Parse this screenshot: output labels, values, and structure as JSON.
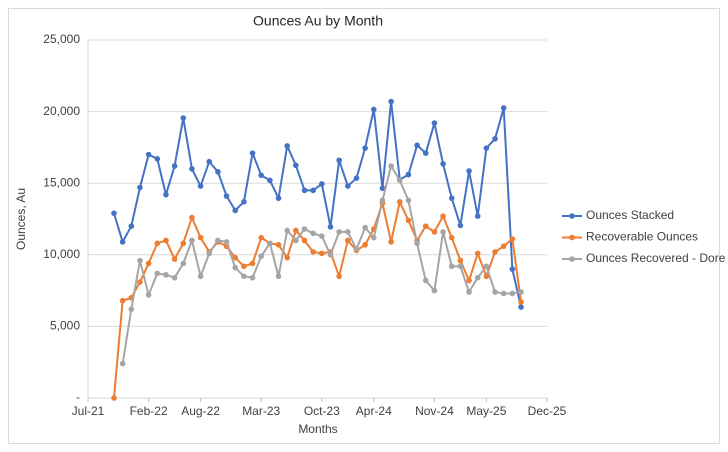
{
  "chart_data": {
    "type": "line",
    "title": "Ounces Au by Month",
    "x_label": "Months",
    "y_label": "Ounces, Au",
    "x": [
      "2021-10",
      "2021-11",
      "2021-12",
      "2022-01",
      "2022-02",
      "2022-03",
      "2022-04",
      "2022-05",
      "2022-06",
      "2022-07",
      "2022-08",
      "2022-09",
      "2022-10",
      "2022-11",
      "2022-12",
      "2023-01",
      "2023-02",
      "2023-03",
      "2023-04",
      "2023-05",
      "2023-06",
      "2023-07",
      "2023-08",
      "2023-09",
      "2023-10",
      "2023-11",
      "2023-12",
      "2024-01",
      "2024-02",
      "2024-03",
      "2024-04",
      "2024-05",
      "2024-06",
      "2024-07",
      "2024-08",
      "2024-09",
      "2024-10",
      "2024-11",
      "2024-12",
      "2025-01",
      "2025-02",
      "2025-03",
      "2025-04",
      "2025-05",
      "2025-06",
      "2025-07",
      "2025-08",
      "2025-09"
    ],
    "series": [
      {
        "name": "Ounces Stacked",
        "color": "#4472c4",
        "values": [
          12900,
          10900,
          12000,
          14700,
          17000,
          16700,
          14200,
          16200,
          19550,
          16000,
          14800,
          16500,
          15800,
          14100,
          13100,
          13700,
          17100,
          15550,
          15200,
          13950,
          17600,
          16250,
          14500,
          14500,
          14950,
          11950,
          16600,
          14800,
          15350,
          17450,
          20150,
          14650,
          20700,
          15250,
          15600,
          17650,
          17100,
          19200,
          16350,
          13950,
          12050,
          15850,
          12700,
          17450,
          18100,
          20250,
          9000,
          6350
        ]
      },
      {
        "name": "Recoverable Ounces",
        "color": "#ed7d31",
        "values": [
          0,
          6800,
          7000,
          8100,
          9400,
          10800,
          11000,
          9700,
          10800,
          12600,
          11200,
          10200,
          10900,
          10600,
          9800,
          9200,
          9400,
          11200,
          10800,
          10700,
          9800,
          11700,
          11000,
          10200,
          10100,
          10200,
          8500,
          11000,
          10300,
          10700,
          11800,
          13600,
          10900,
          13700,
          12400,
          11000,
          12000,
          11600,
          12700,
          11200,
          9600,
          8200,
          10100,
          8500,
          10200,
          10600,
          11100,
          6700
        ]
      },
      {
        "name": "Ounces Recovered - Dore",
        "color": "#a5a5a5",
        "values": [
          null,
          2400,
          6200,
          9600,
          7200,
          8700,
          8600,
          8400,
          9400,
          11000,
          8500,
          10100,
          11000,
          10900,
          9100,
          8500,
          8400,
          9900,
          10800,
          8500,
          11700,
          11000,
          11800,
          11500,
          11300,
          10000,
          11600,
          11600,
          10400,
          11900,
          11200,
          13800,
          16200,
          15200,
          13800,
          10800,
          8200,
          7500,
          11600,
          9200,
          9200,
          7400,
          8400,
          9200,
          7400,
          7300,
          7300,
          7400
        ]
      }
    ],
    "xlim": [
      "2021-07",
      "2025-12"
    ],
    "xticks": [
      {
        "value": "2021-07",
        "label": "Jul-21"
      },
      {
        "value": "2022-02",
        "label": "Feb-22"
      },
      {
        "value": "2022-08",
        "label": "Aug-22"
      },
      {
        "value": "2023-03",
        "label": "Mar-23"
      },
      {
        "value": "2023-10",
        "label": "Oct-23"
      },
      {
        "value": "2024-04",
        "label": "Apr-24"
      },
      {
        "value": "2024-11",
        "label": "Nov-24"
      },
      {
        "value": "2025-05",
        "label": "May-25"
      },
      {
        "value": "2025-12",
        "label": "Dec-25"
      }
    ],
    "ylim": [
      0,
      25000
    ],
    "yticks": [
      {
        "value": 0,
        "label": "-"
      },
      {
        "value": 5000,
        "label": "5,000"
      },
      {
        "value": 10000,
        "label": "10,000"
      },
      {
        "value": 15000,
        "label": "15,000"
      },
      {
        "value": 20000,
        "label": "20,000"
      },
      {
        "value": 25000,
        "label": "25,000"
      }
    ],
    "grid": true,
    "legend": "right"
  }
}
